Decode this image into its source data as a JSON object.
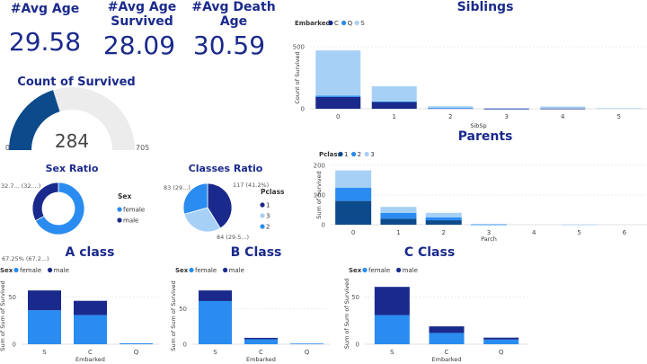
{
  "kpis": {
    "avg_age": {
      "title": "#Avg Age",
      "value": "29.58"
    },
    "avg_age_survived": {
      "title": "#Avg Age Survived",
      "value": "28.09"
    },
    "avg_death_age": {
      "title": "#Avg Death Age",
      "value": "30.59"
    }
  },
  "colors": {
    "dark": "#0d4a8c",
    "navy": "#1a2a8c",
    "mid": "#2a8cf0",
    "light": "#a7d0f7",
    "gauge_bg": "#ececec"
  },
  "chart_data": [
    {
      "id": "siblings",
      "type": "bar",
      "stacked": true,
      "title": "Siblings",
      "xlabel": "SibSp",
      "ylabel": "Count of Survived",
      "legend_title": "Embarked",
      "categories": [
        "0",
        "1",
        "2",
        "3",
        "4",
        "5"
      ],
      "series": [
        {
          "name": "C",
          "values": [
            95,
            55,
            5,
            1,
            2,
            0
          ]
        },
        {
          "name": "Q",
          "values": [
            10,
            4,
            1,
            0,
            0,
            0
          ]
        },
        {
          "name": "S",
          "values": [
            365,
            123,
            14,
            6,
            16,
            5
          ]
        }
      ],
      "ylim": [
        0,
        500
      ],
      "yticks": [
        "0",
        "500"
      ]
    },
    {
      "id": "parents",
      "type": "bar",
      "stacked": true,
      "title": "Parents",
      "xlabel": "Parch",
      "ylabel": "Sum of Survived",
      "legend_title": "Pclass",
      "categories": [
        "0",
        "1",
        "2",
        "3",
        "4",
        "5",
        "6"
      ],
      "series": [
        {
          "name": "1",
          "values": [
            80,
            20,
            15,
            0,
            0,
            0,
            0
          ]
        },
        {
          "name": "2",
          "values": [
            45,
            20,
            10,
            1,
            0,
            0,
            0
          ]
        },
        {
          "name": "3",
          "values": [
            58,
            20,
            15,
            2,
            0,
            1,
            0
          ]
        }
      ],
      "ylim": [
        0,
        200
      ],
      "yticks": [
        "0",
        "100",
        "200"
      ]
    },
    {
      "id": "gauge",
      "type": "gauge",
      "title": "Count of Survived",
      "value": 284,
      "value_label": "284",
      "min": 0,
      "max": 705,
      "min_label": "0",
      "max_label": "705"
    },
    {
      "id": "sex_ratio",
      "type": "pie",
      "donut": true,
      "title": "Sex Ratio",
      "legend_title": "Sex",
      "slices": [
        {
          "name": "female",
          "value": 67.25,
          "label": "67.25% (67.2...)"
        },
        {
          "name": "male",
          "value": 32.75,
          "label": "32.7... (32....)"
        }
      ]
    },
    {
      "id": "classes_ratio",
      "type": "pie",
      "title": "Classes Ratio",
      "legend_title": "Pclass",
      "slices": [
        {
          "name": "1",
          "value": 41.2,
          "label": "117 (41.2%)"
        },
        {
          "name": "3",
          "value": 29.5,
          "label": "84 (29.5...)"
        },
        {
          "name": "2",
          "value": 29.3,
          "label": "83 (29...)"
        }
      ]
    },
    {
      "id": "a_class",
      "type": "bar",
      "stacked": true,
      "title": "A class",
      "xlabel": "Embarked",
      "ylabel": "Sum of Sum of Survived",
      "legend_title": "Sex",
      "categories": [
        "S",
        "C",
        "Q"
      ],
      "series": [
        {
          "name": "female",
          "values": [
            36,
            31,
            1
          ]
        },
        {
          "name": "male",
          "values": [
            21,
            15,
            0
          ]
        }
      ],
      "ylim": [
        0,
        60
      ],
      "yticks": [
        "0",
        "50"
      ]
    },
    {
      "id": "b_class",
      "type": "bar",
      "stacked": true,
      "title": "B Class",
      "xlabel": "Embarked",
      "ylabel": "Sum of Sum of Survived",
      "legend_title": "Sex",
      "categories": [
        "S",
        "C",
        "Q"
      ],
      "series": [
        {
          "name": "female",
          "values": [
            61,
            7,
            1
          ]
        },
        {
          "name": "male",
          "values": [
            15,
            2,
            0
          ]
        }
      ],
      "ylim": [
        0,
        80
      ],
      "yticks": [
        "0",
        "50"
      ]
    },
    {
      "id": "c_class",
      "type": "bar",
      "stacked": true,
      "title": "C Class",
      "xlabel": "Embarked",
      "ylabel": "Sum of Sum of Survived",
      "legend_title": "Sex",
      "categories": [
        "S",
        "C",
        "Q"
      ],
      "series": [
        {
          "name": "female",
          "values": [
            31,
            12,
            5
          ]
        },
        {
          "name": "male",
          "values": [
            30,
            7,
            2
          ]
        }
      ],
      "ylim": [
        0,
        65
      ],
      "yticks": [
        "0",
        "50"
      ]
    }
  ]
}
